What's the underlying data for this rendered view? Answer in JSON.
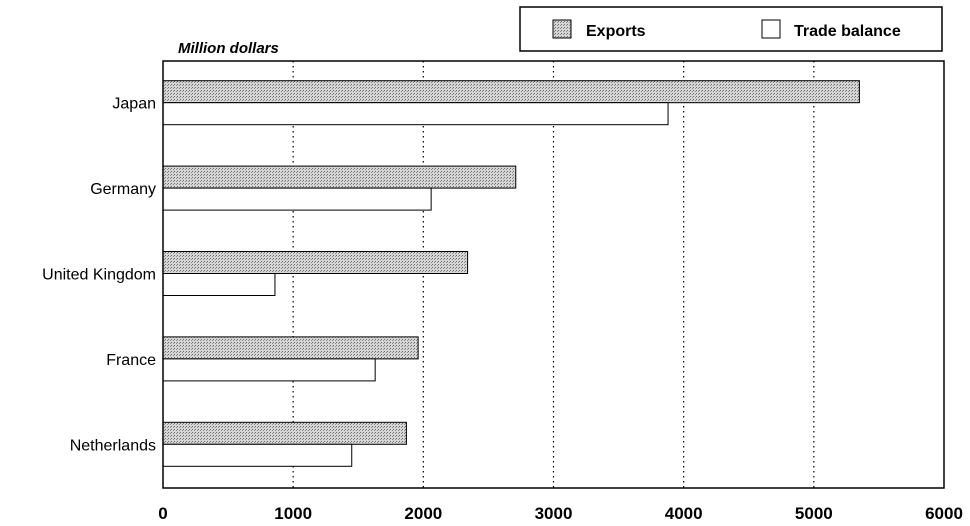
{
  "chart_data": {
    "type": "bar",
    "orientation": "horizontal",
    "ylabel": "Million dollars",
    "categories": [
      "Japan",
      "Germany",
      "United Kingdom",
      "France",
      "Netherlands"
    ],
    "series": [
      {
        "name": "Exports",
        "values": [
          5350,
          2710,
          2340,
          1960,
          1870
        ],
        "color": "#c8c8c8"
      },
      {
        "name": "Trade balance",
        "values": [
          3880,
          2060,
          860,
          1630,
          1450
        ],
        "color": "#ffffff"
      }
    ],
    "xlim": [
      0,
      6000
    ],
    "xticks": [
      "0",
      "1000",
      "2000",
      "3000",
      "4000",
      "5000",
      "6000"
    ],
    "grid": "vertical-dotted",
    "legend_position": "top-right"
  }
}
